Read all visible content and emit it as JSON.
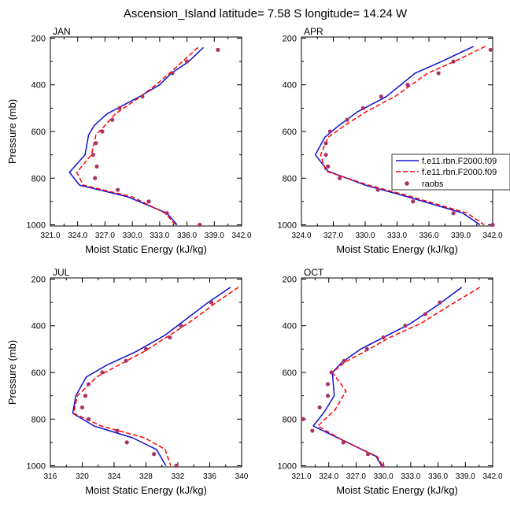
{
  "title": "Ascension_Island  latitude= 7.58 S longitude= 14.24 W",
  "colors": {
    "model1": "#1010d0",
    "model2": "#ff0000",
    "raobs": "#a8336a",
    "axis": "#000000"
  },
  "legend": {
    "entries": [
      {
        "label": "f.e11.rbn.F2000.f09",
        "style": "solid-line"
      },
      {
        "label": "f.e11.rbn.F2000.f09",
        "style": "dashed-line"
      },
      {
        "label": "raobs",
        "style": "dot"
      }
    ]
  },
  "chart_data": [
    {
      "type": "line",
      "panel_label": "JAN",
      "xlabel": "Moist Static Energy (kJ/kg)",
      "ylabel": "Pressure (mb)",
      "xlim": [
        321.0,
        342.0
      ],
      "xticks": [
        "321.0",
        "324.0",
        "327.0",
        "330.0",
        "333.0",
        "336.0",
        "339.0",
        "342.0"
      ],
      "ylim": [
        1000,
        200
      ],
      "yticks": [
        "200",
        "400",
        "600",
        "800",
        "1000"
      ],
      "series": [
        {
          "style": "solid",
          "points": [
            [
              337.8,
              240
            ],
            [
              336.2,
              300
            ],
            [
              334.3,
              350
            ],
            [
              333.0,
              400
            ],
            [
              330.8,
              450
            ],
            [
              327.2,
              525
            ],
            [
              325.8,
              575
            ],
            [
              325.2,
              615
            ],
            [
              324.8,
              700
            ],
            [
              323.1,
              775
            ],
            [
              324.2,
              830
            ],
            [
              329.5,
              880
            ],
            [
              333.8,
              950
            ],
            [
              334.7,
              990
            ],
            [
              334.9,
              1000
            ]
          ]
        },
        {
          "style": "dashed",
          "points": [
            [
              337.2,
              240
            ],
            [
              335.8,
              290
            ],
            [
              334.1,
              350
            ],
            [
              332.6,
              400
            ],
            [
              330.9,
              450
            ],
            [
              328.1,
              525
            ],
            [
              327.1,
              570
            ],
            [
              326.0,
              615
            ],
            [
              325.5,
              700
            ],
            [
              323.9,
              775
            ],
            [
              324.6,
              830
            ],
            [
              330.0,
              880
            ],
            [
              333.6,
              950
            ],
            [
              334.5,
              990
            ],
            [
              334.8,
              1000
            ]
          ]
        },
        {
          "style": "dots",
          "points": [
            [
              339.4,
              250
            ],
            [
              336.0,
              300
            ],
            [
              334.4,
              350
            ],
            [
              331.1,
              450
            ],
            [
              328.6,
              500
            ],
            [
              327.8,
              550
            ],
            [
              326.7,
              600
            ],
            [
              326.0,
              650
            ],
            [
              325.7,
              700
            ],
            [
              326.1,
              750
            ],
            [
              325.9,
              800
            ],
            [
              328.4,
              850
            ],
            [
              331.8,
              900
            ],
            [
              333.8,
              950
            ],
            [
              337.4,
              1000
            ]
          ]
        }
      ]
    },
    {
      "type": "line",
      "panel_label": "APR",
      "xlabel": "Moist Static Energy (kJ/kg)",
      "ylabel": "",
      "xlim": [
        324.0,
        342.0
      ],
      "xticks": [
        "324.0",
        "327.0",
        "330.0",
        "333.0",
        "336.0",
        "339.0",
        "342.0"
      ],
      "ylim": [
        1000,
        200
      ],
      "yticks": [
        "200",
        "400",
        "600",
        "800",
        "1000"
      ],
      "series": [
        {
          "style": "solid",
          "points": [
            [
              340.2,
              235
            ],
            [
              337.2,
              300
            ],
            [
              334.7,
              350
            ],
            [
              332.0,
              450
            ],
            [
              329.3,
              515
            ],
            [
              327.5,
              575
            ],
            [
              326.2,
              625
            ],
            [
              325.3,
              700
            ],
            [
              326.5,
              770
            ],
            [
              330.0,
              830
            ],
            [
              334.0,
              880
            ],
            [
              339.2,
              950
            ],
            [
              340.8,
              1000
            ]
          ]
        },
        {
          "style": "dashed",
          "points": [
            [
              341.3,
              235
            ],
            [
              338.4,
              300
            ],
            [
              335.9,
              350
            ],
            [
              332.8,
              450
            ],
            [
              330.1,
              515
            ],
            [
              328.2,
              570
            ],
            [
              326.5,
              625
            ],
            [
              325.8,
              700
            ],
            [
              326.3,
              770
            ],
            [
              330.3,
              830
            ],
            [
              334.4,
              880
            ],
            [
              339.6,
              950
            ],
            [
              341.2,
              1000
            ]
          ]
        },
        {
          "style": "dots",
          "points": [
            [
              341.8,
              250
            ],
            [
              338.3,
              300
            ],
            [
              336.9,
              350
            ],
            [
              334.0,
              400
            ],
            [
              331.5,
              450
            ],
            [
              329.8,
              500
            ],
            [
              328.3,
              550
            ],
            [
              326.7,
              600
            ],
            [
              326.3,
              650
            ],
            [
              326.3,
              700
            ],
            [
              326.5,
              750
            ],
            [
              327.6,
              800
            ],
            [
              331.2,
              850
            ],
            [
              334.5,
              900
            ],
            [
              338.3,
              950
            ],
            [
              342.0,
              1000
            ]
          ]
        }
      ]
    },
    {
      "type": "line",
      "panel_label": "JUL",
      "xlabel": "Moist Static Energy (kJ/kg)",
      "ylabel": "Pressure (mb)",
      "xlim": [
        316,
        340
      ],
      "xticks": [
        "316",
        "320",
        "324",
        "328",
        "332",
        "336",
        "340"
      ],
      "ylim": [
        1000,
        200
      ],
      "yticks": [
        "200",
        "400",
        "600",
        "800",
        "1000"
      ],
      "series": [
        {
          "style": "solid",
          "points": [
            [
              338.6,
              235
            ],
            [
              335.8,
              300
            ],
            [
              333.1,
              370
            ],
            [
              330.4,
              440
            ],
            [
              326.8,
              510
            ],
            [
              323.0,
              570
            ],
            [
              320.5,
              620
            ],
            [
              319.2,
              700
            ],
            [
              318.8,
              775
            ],
            [
              321.5,
              830
            ],
            [
              326.3,
              880
            ],
            [
              329.3,
              930
            ],
            [
              330.5,
              1000
            ]
          ]
        },
        {
          "style": "dashed",
          "points": [
            [
              339.6,
              235
            ],
            [
              336.8,
              300
            ],
            [
              334.1,
              370
            ],
            [
              331.0,
              440
            ],
            [
              327.8,
              510
            ],
            [
              324.5,
              570
            ],
            [
              321.8,
              620
            ],
            [
              319.4,
              700
            ],
            [
              318.9,
              775
            ],
            [
              322.4,
              830
            ],
            [
              327.8,
              880
            ],
            [
              330.4,
              930
            ],
            [
              331.1,
              1000
            ]
          ]
        },
        {
          "style": "dots",
          "points": [
            [
              336.2,
              300
            ],
            [
              332.4,
              400
            ],
            [
              331.0,
              450
            ],
            [
              328.0,
              500
            ],
            [
              325.5,
              550
            ],
            [
              322.5,
              600
            ],
            [
              320.8,
              650
            ],
            [
              320.4,
              700
            ],
            [
              320.0,
              750
            ],
            [
              320.8,
              800
            ],
            [
              324.4,
              850
            ],
            [
              325.6,
              900
            ],
            [
              329.0,
              950
            ],
            [
              331.8,
              1000
            ]
          ]
        }
      ]
    },
    {
      "type": "line",
      "panel_label": "OCT",
      "xlabel": "Moist Static Energy (kJ/kg)",
      "ylabel": "",
      "xlim": [
        321.0,
        342.0
      ],
      "xticks": [
        "321.0",
        "324.0",
        "327.0",
        "330.0",
        "333.0",
        "336.0",
        "339.0",
        "342.0"
      ],
      "ylim": [
        1000,
        200
      ],
      "yticks": [
        "200",
        "400",
        "600",
        "800",
        "1000"
      ],
      "series": [
        {
          "style": "solid",
          "points": [
            [
              338.6,
              235
            ],
            [
              336.0,
              310
            ],
            [
              333.0,
              390
            ],
            [
              330.0,
              450
            ],
            [
              327.5,
              500
            ],
            [
              325.5,
              555
            ],
            [
              324.4,
              600
            ],
            [
              324.6,
              700
            ],
            [
              323.5,
              770
            ],
            [
              322.3,
              830
            ],
            [
              325.5,
              890
            ],
            [
              329.2,
              960
            ],
            [
              329.8,
              1000
            ]
          ]
        },
        {
          "style": "dashed",
          "points": [
            [
              340.6,
              235
            ],
            [
              337.4,
              310
            ],
            [
              334.1,
              390
            ],
            [
              330.7,
              450
            ],
            [
              328.0,
              510
            ],
            [
              325.8,
              555
            ],
            [
              324.4,
              600
            ],
            [
              325.9,
              680
            ],
            [
              324.7,
              760
            ],
            [
              322.8,
              830
            ],
            [
              325.5,
              890
            ],
            [
              329.3,
              960
            ],
            [
              329.9,
              1000
            ]
          ]
        },
        {
          "style": "dots",
          "points": [
            [
              336.2,
              300
            ],
            [
              334.6,
              350
            ],
            [
              332.4,
              400
            ],
            [
              330.0,
              450
            ],
            [
              328.2,
              500
            ],
            [
              325.7,
              550
            ],
            [
              324.3,
              600
            ],
            [
              323.9,
              650
            ],
            [
              323.9,
              700
            ],
            [
              323.0,
              750
            ],
            [
              321.2,
              800
            ],
            [
              322.2,
              850
            ],
            [
              325.6,
              900
            ],
            [
              328.3,
              950
            ],
            [
              329.9,
              1000
            ]
          ]
        }
      ]
    }
  ]
}
